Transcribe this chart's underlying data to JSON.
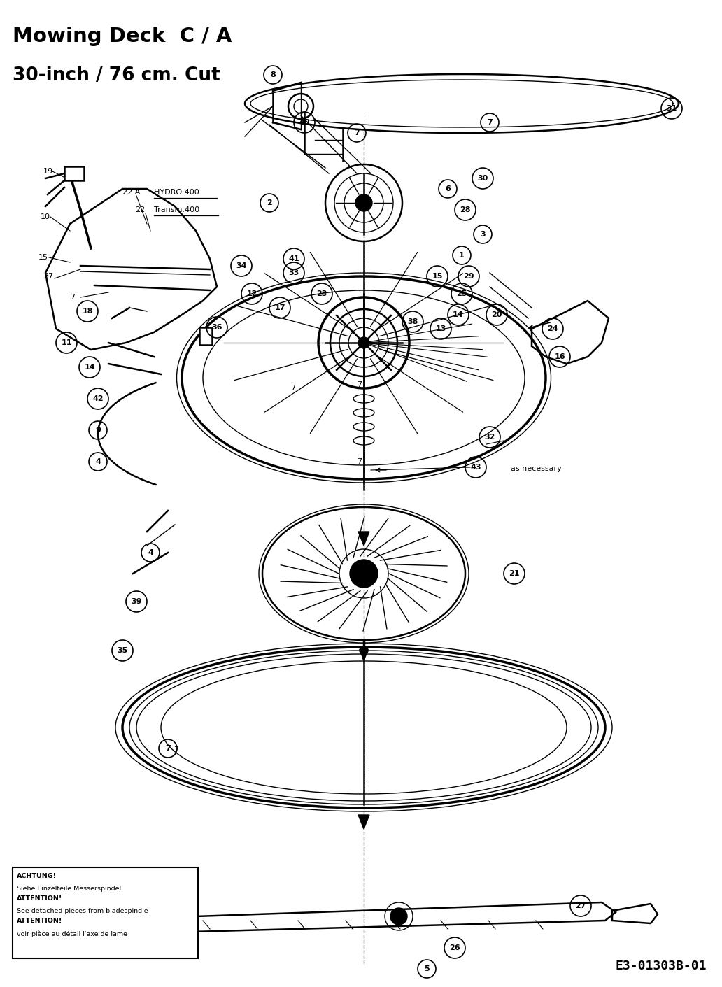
{
  "title1": "Mowing Deck  C / A",
  "title2": "30-inch / 76 cm. Cut",
  "part_id": "E3-01303B-01",
  "bg_color": "#ffffff",
  "fg_color": "#000000",
  "warning_lines": [
    [
      "ACHTUNG!",
      true
    ],
    [
      "Siehe Einzelteile Messerspindel",
      false
    ],
    [
      "ATTENTION!",
      true
    ],
    [
      "See detached pieces from bladespindle",
      false
    ],
    [
      "ATTENTION!",
      true
    ],
    [
      "voir pièce au détail l'axe de lame",
      false
    ]
  ]
}
